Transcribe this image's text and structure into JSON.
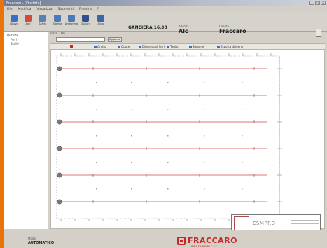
{
  "app": {
    "window_title": "Fraccaro - [Distinta]"
  },
  "window_controls": {
    "minimize": "_",
    "maximize": "□",
    "close": "×"
  },
  "menu": [
    "File",
    "Modifica",
    "Visualizza",
    "Strumenti",
    "Finestra",
    "?"
  ],
  "toolbar": {
    "buttons": [
      {
        "label": "Nuovo",
        "icon": "new-icon",
        "color": "#3a6fc4"
      },
      {
        "label": "Apri",
        "icon": "open-icon",
        "color": "#d14b3a"
      },
      {
        "label": "Salva",
        "icon": "save-icon",
        "color": "#5a7fb3"
      },
      {
        "label": "Stampa",
        "icon": "print-icon",
        "color": "#4d79b8"
      },
      {
        "label": "Anteprima",
        "icon": "preview-icon",
        "color": "#4d79b8"
      },
      {
        "label": "Opzioni",
        "icon": "options-icon",
        "color": "#2f4f86"
      },
      {
        "label": "Aiuto",
        "icon": "help-icon",
        "color": "#3b67a8"
      }
    ]
  },
  "info": {
    "code": {
      "caption": "",
      "value": "GANCIERA 16.38"
    },
    "height": {
      "caption": "Altezza",
      "value": "Alc"
    },
    "brand": {
      "caption": "Cliente",
      "value": "Fraccaro"
    }
  },
  "tree": {
    "root": "Distinta",
    "children": [
      "Ferri",
      "Staffe"
    ]
  },
  "sub_tabs": [
    "Vista",
    "Dati"
  ],
  "combo": {
    "value": "",
    "button": "Aggiorna"
  },
  "tool_row": [
    {
      "label": "",
      "color": "#c62828"
    },
    {
      "label": "Ordina",
      "color": "#3a6fc4"
    },
    {
      "label": "Quote",
      "color": "#3a6fc4"
    },
    {
      "label": "Dimensioni ferri",
      "color": "#3a6fc4"
    },
    {
      "label": "Taglio",
      "color": "#3a6fc4"
    },
    {
      "label": "Sagome",
      "color": "#3a6fc4"
    },
    {
      "label": "Esporta disegno",
      "color": "#3a6fc4"
    }
  ],
  "title_block": {
    "brand": "ESMPRO"
  },
  "status": {
    "label": "Modo",
    "value": "AUTOMATICO"
  },
  "company": {
    "name": "FRACCARO",
    "tagline": "PREFABBRICATI"
  },
  "colors": {
    "accent": "#e8740a",
    "bars": "#e27676",
    "brand": "#c62828"
  }
}
